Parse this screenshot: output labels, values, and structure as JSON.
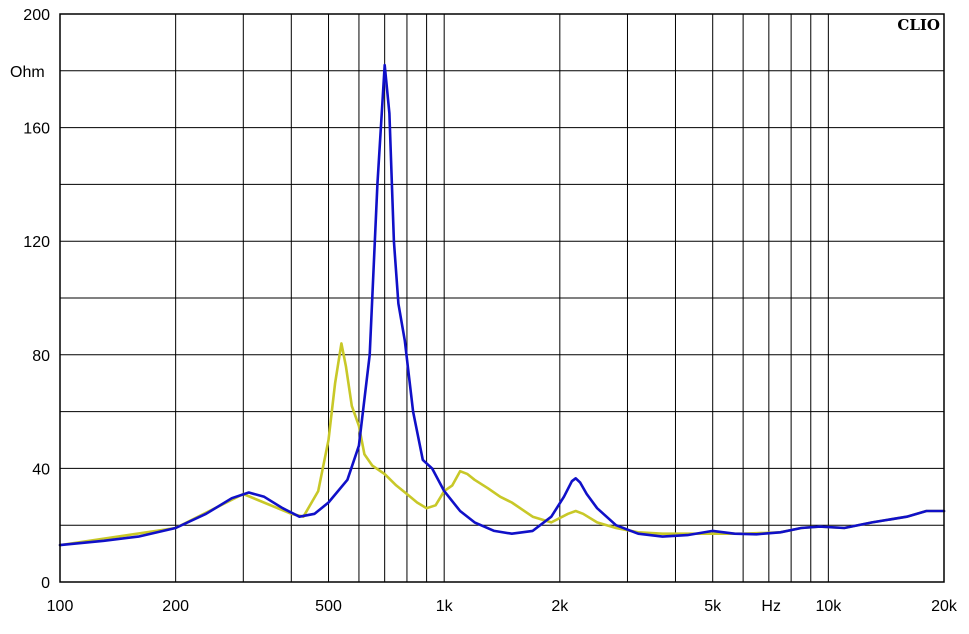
{
  "chart_data": {
    "type": "line",
    "brand": "CLIO",
    "ylabel": "Ohm",
    "xunit": "Hz",
    "x_scale": "log",
    "xlim": [
      100,
      20000
    ],
    "ylim": [
      0,
      200
    ],
    "grid": true,
    "y_ticks": [
      "0",
      "40",
      "80",
      "120",
      "160",
      "200"
    ],
    "x_ticks": [
      {
        "value": 100,
        "label": "100"
      },
      {
        "value": 200,
        "label": "200"
      },
      {
        "value": 500,
        "label": "500"
      },
      {
        "value": 1000,
        "label": "1k"
      },
      {
        "value": 2000,
        "label": "2k"
      },
      {
        "value": 5000,
        "label": "5k"
      },
      {
        "value": 10000,
        "label": "10k"
      },
      {
        "value": 20000,
        "label": "20k"
      }
    ],
    "series": [
      {
        "color": "#1010c8",
        "points": [
          [
            100,
            13
          ],
          [
            130,
            14.5
          ],
          [
            160,
            16
          ],
          [
            200,
            19
          ],
          [
            240,
            24
          ],
          [
            280,
            29.5
          ],
          [
            310,
            31.5
          ],
          [
            340,
            30
          ],
          [
            380,
            26
          ],
          [
            420,
            23
          ],
          [
            460,
            24
          ],
          [
            500,
            28
          ],
          [
            560,
            36
          ],
          [
            600,
            48
          ],
          [
            640,
            80
          ],
          [
            670,
            140
          ],
          [
            700,
            182
          ],
          [
            720,
            165
          ],
          [
            740,
            120
          ],
          [
            760,
            98
          ],
          [
            790,
            85
          ],
          [
            830,
            60
          ],
          [
            880,
            43
          ],
          [
            930,
            40
          ],
          [
            1000,
            32
          ],
          [
            1100,
            25
          ],
          [
            1200,
            21
          ],
          [
            1350,
            18
          ],
          [
            1500,
            17
          ],
          [
            1700,
            18
          ],
          [
            1900,
            23
          ],
          [
            2050,
            30
          ],
          [
            2150,
            35.5
          ],
          [
            2200,
            36.5
          ],
          [
            2260,
            35
          ],
          [
            2350,
            31
          ],
          [
            2500,
            26
          ],
          [
            2800,
            20
          ],
          [
            3200,
            17
          ],
          [
            3700,
            16
          ],
          [
            4300,
            16.5
          ],
          [
            5000,
            18
          ],
          [
            5700,
            17
          ],
          [
            6500,
            16.8
          ],
          [
            7500,
            17.5
          ],
          [
            8500,
            19
          ],
          [
            9500,
            19.5
          ],
          [
            11000,
            19
          ],
          [
            13000,
            21
          ],
          [
            16000,
            23
          ],
          [
            18000,
            25
          ],
          [
            20000,
            25
          ]
        ]
      },
      {
        "color": "#c8c828",
        "points": [
          [
            100,
            13
          ],
          [
            200,
            19
          ],
          [
            300,
            31
          ],
          [
            400,
            24
          ],
          [
            430,
            23
          ],
          [
            470,
            32
          ],
          [
            500,
            50
          ],
          [
            520,
            70
          ],
          [
            540,
            84
          ],
          [
            555,
            76
          ],
          [
            575,
            62
          ],
          [
            600,
            55
          ],
          [
            620,
            45
          ],
          [
            650,
            41
          ],
          [
            700,
            38
          ],
          [
            750,
            34
          ],
          [
            800,
            31
          ],
          [
            850,
            28
          ],
          [
            900,
            26
          ],
          [
            950,
            27
          ],
          [
            1000,
            32
          ],
          [
            1050,
            34
          ],
          [
            1100,
            39
          ],
          [
            1150,
            38
          ],
          [
            1200,
            36
          ],
          [
            1300,
            33
          ],
          [
            1400,
            30
          ],
          [
            1500,
            28
          ],
          [
            1700,
            23
          ],
          [
            1900,
            21
          ],
          [
            2100,
            24
          ],
          [
            2200,
            25
          ],
          [
            2300,
            24
          ],
          [
            2500,
            21
          ],
          [
            2800,
            19
          ],
          [
            3200,
            17.5
          ],
          [
            3700,
            17
          ],
          [
            4300,
            17
          ],
          [
            5000,
            17
          ],
          [
            6000,
            17
          ],
          [
            7500,
            17.5
          ],
          [
            8500,
            19
          ],
          [
            9500,
            19.5
          ],
          [
            11000,
            19
          ],
          [
            13000,
            21
          ],
          [
            16000,
            23
          ],
          [
            18000,
            25
          ],
          [
            20000,
            25
          ]
        ]
      }
    ]
  }
}
